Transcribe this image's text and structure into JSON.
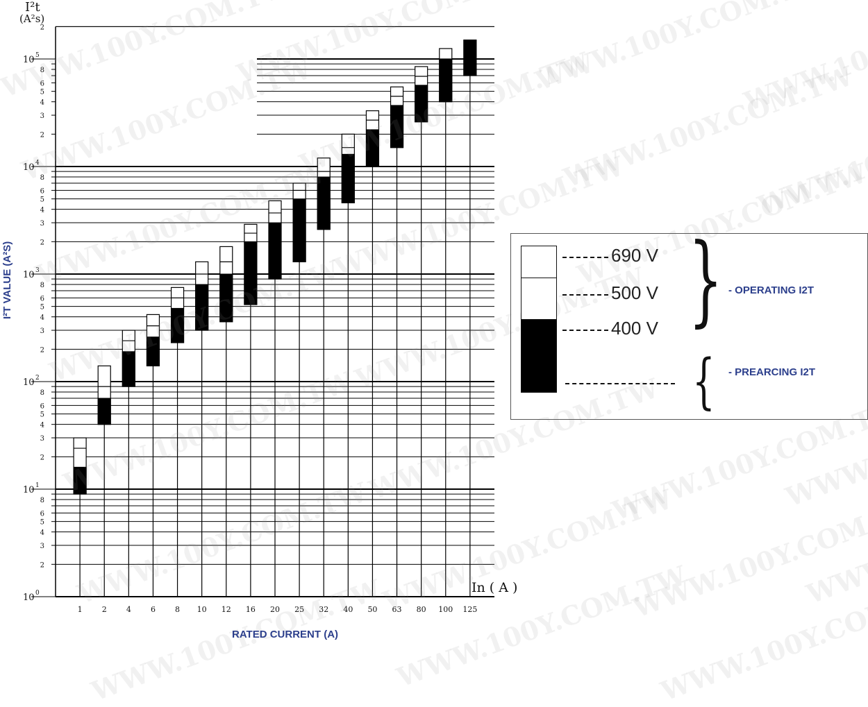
{
  "chart_data": {
    "type": "bar",
    "title": "",
    "xlabel": "RATED CURRENT (A)",
    "ylabel": "I²T VALUE (A²S)",
    "y_unit_label": "I²t",
    "y_unit_sub": "(A²s)",
    "x_unit_label": "In ( A )",
    "y_scale": "log",
    "ylim": [
      1,
      200000
    ],
    "grid": true,
    "categories": [
      "1",
      "2",
      "4",
      "6",
      "8",
      "10",
      "12",
      "16",
      "20",
      "25",
      "32",
      "40",
      "50",
      "63",
      "80",
      "100",
      "125"
    ],
    "y_major_ticks": [
      {
        "value": 1,
        "label": "10",
        "exp": "0"
      },
      {
        "value": 10,
        "label": "10",
        "exp": "1"
      },
      {
        "value": 100,
        "label": "10",
        "exp": "2"
      },
      {
        "value": 1000,
        "label": "10",
        "exp": "3"
      },
      {
        "value": 10000,
        "label": "10",
        "exp": "4"
      },
      {
        "value": 100000,
        "label": "10",
        "exp": "5"
      }
    ],
    "y_minor_labels": [
      "2",
      "3",
      "4",
      "5",
      "6",
      "8"
    ],
    "y_top_label": "2",
    "series": [
      {
        "name": "PREARCING I2T",
        "values": [
          9,
          40,
          90,
          140,
          230,
          300,
          360,
          520,
          900,
          1300,
          2600,
          4600,
          10000,
          15000,
          26000,
          40000,
          70000
        ]
      },
      {
        "name": "400 V",
        "values": [
          16,
          70,
          190,
          260,
          480,
          800,
          1000,
          2000,
          3000,
          5000,
          8000,
          13000,
          22000,
          37000,
          57000,
          100000,
          150000
        ]
      },
      {
        "name": "500 V",
        "values": [
          24,
          90,
          240,
          330,
          600,
          1000,
          1300,
          2400,
          3700,
          6000,
          9000,
          15000,
          27000,
          45000,
          69000,
          100000,
          150000
        ]
      },
      {
        "name": "690 V",
        "values": [
          30,
          140,
          300,
          420,
          750,
          1300,
          1800,
          2900,
          4800,
          7000,
          12000,
          20000,
          33000,
          55000,
          85000,
          125000,
          150000
        ]
      }
    ],
    "legend": {
      "position": "right",
      "voltage_labels": [
        "690 V",
        "500 V",
        "400 V"
      ],
      "operating_label": "- OPERATING I2T",
      "prearcing_label": "- PREARCING I2T"
    }
  },
  "watermark": "WWW.100Y.COM.TW",
  "colors": {
    "accent": "#2c3f8c",
    "bar_fill": "#000000",
    "grid": "#000000"
  }
}
